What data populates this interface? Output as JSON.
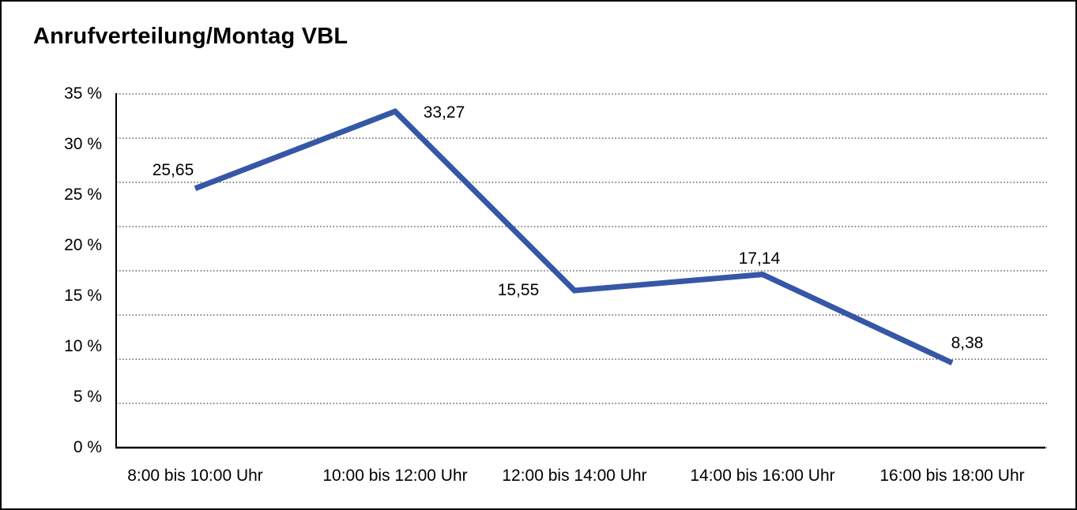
{
  "title": "Anrufverteilung/Montag VBL",
  "chart_data": {
    "type": "line",
    "title": "Anrufverteilung/Montag VBL",
    "categories": [
      "8:00 bis 10:00 Uhr",
      "10:00 bis 12:00 Uhr",
      "12:00 bis 14:00 Uhr",
      "14:00 bis 16:00 Uhr",
      "16:00 bis 18:00 Uhr"
    ],
    "series": [
      {
        "name": "Anrufverteilung",
        "values": [
          25.65,
          33.27,
          15.55,
          17.14,
          8.38
        ]
      }
    ],
    "value_labels": [
      "25,65",
      "33,27",
      "15,55",
      "17,14",
      "8,38"
    ],
    "y_tick_labels": [
      "35 %",
      "30 %",
      "25 %",
      "20 %",
      "15 %",
      "10 %",
      "5 %",
      "0 %"
    ],
    "xlabel": "",
    "ylabel": "",
    "ylim": [
      0,
      35
    ],
    "y_tick_step": 5,
    "grid": "horizontal-dotted",
    "legend_position": "none",
    "line_color": "#3657A6",
    "grid_color": "#3c3c3c",
    "axis_color": "#000000",
    "text_color": "#000000"
  }
}
